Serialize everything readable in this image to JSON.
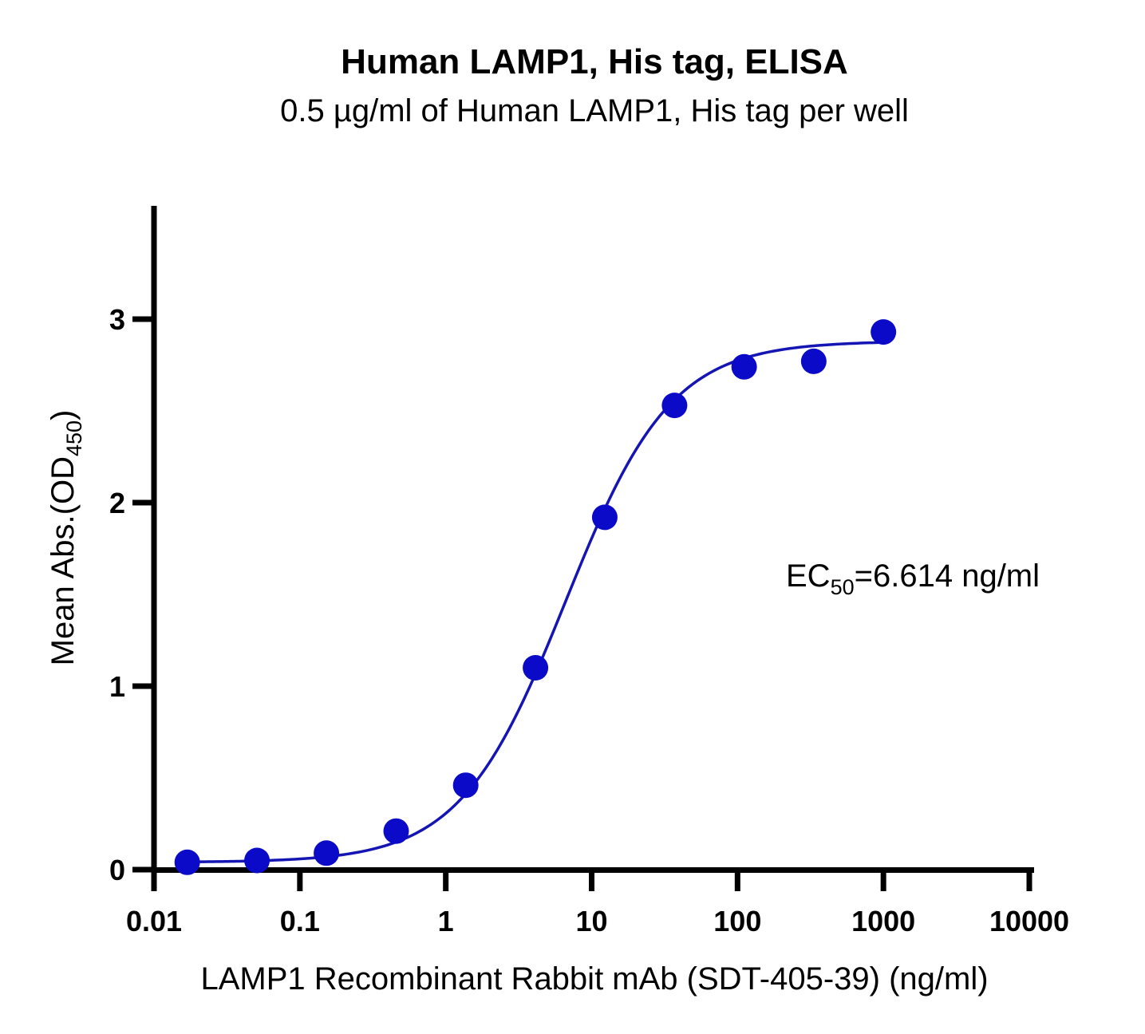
{
  "chart_data": {
    "type": "scatter",
    "title": "Human LAMP1, His tag, ELISA",
    "subtitle": "0.5 µg/ml of Human LAMP1, His tag per well",
    "xlabel": "LAMP1 Recombinant Rabbit mAb (SDT-405-39) (ng/ml)",
    "ylabel": {
      "main": "Mean Abs.(OD",
      "sub": "450",
      "close": ")"
    },
    "xscale": "log",
    "xlim": [
      0.01,
      10000
    ],
    "ylim": [
      0,
      3.6
    ],
    "xticks": [
      0.01,
      0.1,
      1,
      10,
      100,
      1000,
      10000
    ],
    "xtick_labels": [
      "0.01",
      "0.1",
      "1",
      "10",
      "100",
      "1000",
      "10000"
    ],
    "yticks": [
      0,
      1,
      2,
      3
    ],
    "ytick_labels": [
      "0",
      "1",
      "2",
      "3"
    ],
    "grid": false,
    "series": [
      {
        "name": "Human LAMP1, His tag",
        "color": "#0a0ac8",
        "x": [
          0.0169,
          0.0508,
          0.152,
          0.457,
          1.37,
          4.12,
          12.3,
          37.0,
          111,
          333,
          1000
        ],
        "y": [
          0.04,
          0.05,
          0.09,
          0.21,
          0.46,
          1.1,
          1.92,
          2.53,
          2.74,
          2.77,
          2.93
        ]
      }
    ],
    "fit_curve": {
      "model": "4PL",
      "bottom": 0.04,
      "top": 2.88,
      "ec50": 6.614,
      "hill": 1.2,
      "color": "#1515b4"
    },
    "annotation": {
      "prefix": "EC",
      "sub": "50",
      "suffix": "=6.614 ng/ml"
    }
  }
}
